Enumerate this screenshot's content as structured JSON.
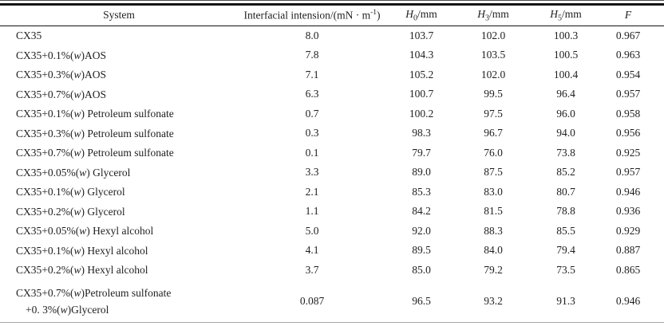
{
  "table": {
    "columns": {
      "system": "System",
      "interfacial": {
        "pre": "Interfacial intension/(mN · m",
        "sup": "-1",
        "post": ")"
      },
      "h0": {
        "var": "H",
        "sub": "0",
        "unit": "/mm"
      },
      "h3": {
        "var": "H",
        "sub": "3",
        "unit": "/mm"
      },
      "h5": {
        "var": "H",
        "sub": "5",
        "unit": "/mm"
      },
      "f": "F"
    },
    "rows": [
      {
        "system": "CX35",
        "interfacial": "8.0",
        "h0": "103.7",
        "h3": "102.0",
        "h5": "100.3",
        "f": "0.967"
      },
      {
        "system": "CX35+0.1%(w)AOS",
        "interfacial": "7.8",
        "h0": "104.3",
        "h3": "103.5",
        "h5": "100.5",
        "f": "0.963"
      },
      {
        "system": "CX35+0.3%(w)AOS",
        "interfacial": "7.1",
        "h0": "105.2",
        "h3": "102.0",
        "h5": "100.4",
        "f": "0.954"
      },
      {
        "system": "CX35+0.7%(w)AOS",
        "interfacial": "6.3",
        "h0": "100.7",
        "h3": "99.5",
        "h5": "96.4",
        "f": "0.957"
      },
      {
        "system": "CX35+0.1%(w) Petroleum sulfonate",
        "interfacial": "0.7",
        "h0": "100.2",
        "h3": "97.5",
        "h5": "96.0",
        "f": "0.958"
      },
      {
        "system": "CX35+0.3%(w) Petroleum sulfonate",
        "interfacial": "0.3",
        "h0": "98.3",
        "h3": "96.7",
        "h5": "94.0",
        "f": "0.956"
      },
      {
        "system": "CX35+0.7%(w) Petroleum sulfonate",
        "interfacial": "0.1",
        "h0": "79.7",
        "h3": "76.0",
        "h5": "73.8",
        "f": "0.925"
      },
      {
        "system": "CX35+0.05%(w) Glycerol",
        "interfacial": "3.3",
        "h0": "89.0",
        "h3": "87.5",
        "h5": "85.2",
        "f": "0.957"
      },
      {
        "system": "CX35+0.1%(w) Glycerol",
        "interfacial": "2.1",
        "h0": "85.3",
        "h3": "83.0",
        "h5": "80.7",
        "f": "0.946"
      },
      {
        "system": "CX35+0.2%(w) Glycerol",
        "interfacial": "1.1",
        "h0": "84.2",
        "h3": "81.5",
        "h5": "78.8",
        "f": "0.936"
      },
      {
        "system": "CX35+0.05%(w) Hexyl alcohol",
        "interfacial": "5.0",
        "h0": "92.0",
        "h3": "88.3",
        "h5": "85.5",
        "f": "0.929"
      },
      {
        "system": "CX35+0.1%(w) Hexyl alcohol",
        "interfacial": "4.1",
        "h0": "89.5",
        "h3": "84.0",
        "h5": "79.4",
        "f": "0.887"
      },
      {
        "system": "CX35+0.2%(w) Hexyl alcohol",
        "interfacial": "3.7",
        "h0": "85.0",
        "h3": "79.2",
        "h5": "73.5",
        "f": "0.865"
      },
      {
        "system": "CX35+0.7%(w)Petroleum sulfonate",
        "system2": "+0. 3%(w)Glycerol",
        "interfacial": "0.087",
        "h0": "96.5",
        "h3": "93.2",
        "h5": "91.3",
        "f": "0.946"
      }
    ]
  }
}
